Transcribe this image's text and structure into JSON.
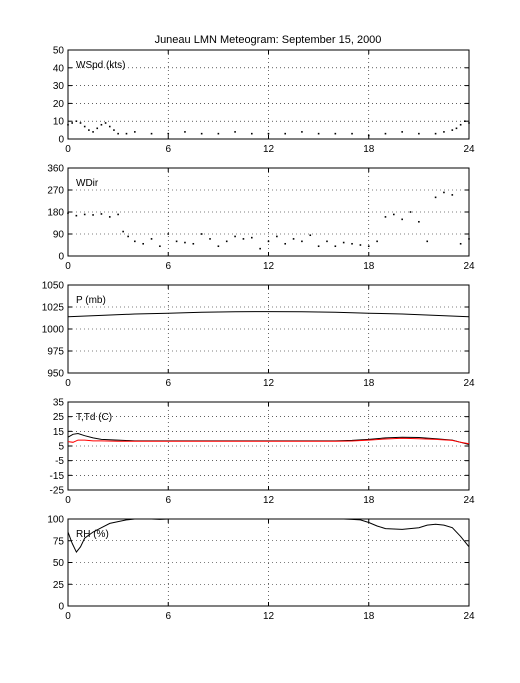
{
  "title": "Juneau LMN Meteogram: September 15, 2000",
  "chart_data": [
    {
      "type": "scatter",
      "label": "WSpd (kts)",
      "xlim": [
        0,
        24
      ],
      "ylim": [
        0,
        50
      ],
      "xticks": [
        0,
        6,
        12,
        18,
        24
      ],
      "yticks": [
        0,
        10,
        20,
        30,
        40,
        50
      ],
      "grid": true,
      "series": [
        {
          "color": "#000000",
          "x": [
            0,
            0.25,
            0.5,
            0.75,
            1,
            1.25,
            1.5,
            1.75,
            2,
            2.25,
            2.5,
            2.75,
            3,
            3.5,
            4,
            5,
            6,
            7,
            8,
            9,
            10,
            11,
            12,
            13,
            14,
            15,
            16,
            17,
            18,
            19,
            20,
            21,
            22,
            22.5,
            23,
            23.25,
            23.5,
            23.75,
            24
          ],
          "y": [
            8,
            9,
            10,
            9,
            7,
            5,
            4,
            6,
            8,
            9,
            7,
            5,
            3,
            3,
            4,
            3,
            3,
            4,
            3,
            3,
            4,
            3,
            3,
            3,
            4,
            3,
            3,
            3,
            2,
            3,
            4,
            3,
            3,
            4,
            5,
            6,
            8,
            10,
            9
          ]
        }
      ]
    },
    {
      "type": "scatter",
      "label": "WDir",
      "xlim": [
        0,
        24
      ],
      "ylim": [
        0,
        360
      ],
      "xticks": [
        0,
        6,
        12,
        18,
        24
      ],
      "yticks": [
        0,
        90,
        180,
        270,
        360
      ],
      "grid": true,
      "series": [
        {
          "color": "#000000",
          "x": [
            0,
            0.5,
            1,
            1.5,
            2,
            2.5,
            3,
            3.3,
            3.6,
            4,
            4.5,
            5,
            5.5,
            6,
            6.5,
            7,
            7.5,
            8,
            8.5,
            9,
            9.5,
            10,
            10.5,
            11,
            11.5,
            12,
            12.5,
            13,
            13.5,
            14,
            14.5,
            15,
            15.5,
            16,
            16.5,
            17,
            17.5,
            18,
            18.5,
            19,
            19.5,
            20,
            20.5,
            21,
            21.5,
            22,
            22.5,
            23,
            23.5,
            24
          ],
          "y": [
            175,
            165,
            170,
            168,
            172,
            160,
            170,
            100,
            80,
            60,
            50,
            70,
            40,
            90,
            60,
            55,
            50,
            90,
            70,
            40,
            60,
            80,
            70,
            75,
            30,
            60,
            80,
            50,
            70,
            60,
            85,
            40,
            60,
            40,
            55,
            50,
            45,
            40,
            60,
            160,
            170,
            150,
            180,
            140,
            60,
            240,
            260,
            250,
            50,
            70
          ]
        }
      ]
    },
    {
      "type": "line",
      "label": "P (mb)",
      "xlim": [
        0,
        24
      ],
      "ylim": [
        950,
        1050
      ],
      "xticks": [
        0,
        6,
        12,
        18,
        24
      ],
      "yticks": [
        950,
        975,
        1000,
        1025,
        1050
      ],
      "grid": true,
      "series": [
        {
          "color": "#000000",
          "x": [
            0,
            2,
            4,
            6,
            8,
            10,
            12,
            14,
            16,
            18,
            20,
            22,
            24
          ],
          "y": [
            1014,
            1015.5,
            1017,
            1018,
            1019,
            1019.5,
            1019.8,
            1019.5,
            1019,
            1018,
            1017,
            1015.5,
            1014
          ]
        }
      ]
    },
    {
      "type": "line",
      "label": "T,Td (C)",
      "xlim": [
        0,
        24
      ],
      "ylim": [
        -25,
        35
      ],
      "xticks": [
        0,
        6,
        12,
        18,
        24
      ],
      "yticks": [
        -25,
        -15,
        -5,
        5,
        15,
        25,
        35
      ],
      "grid": true,
      "series": [
        {
          "color": "#000000",
          "x": [
            0,
            0.3,
            0.6,
            1,
            1.5,
            2,
            3,
            4,
            6,
            8,
            10,
            12,
            14,
            16,
            17,
            18,
            19,
            20,
            21,
            22,
            23,
            23.5,
            24
          ],
          "y": [
            11,
            13,
            13.5,
            12,
            10.5,
            9.5,
            9,
            8.5,
            8.5,
            8.5,
            8.5,
            8.5,
            8.5,
            8.5,
            8.8,
            9.5,
            10.5,
            11,
            10.8,
            10,
            9,
            7.5,
            6
          ]
        },
        {
          "color": "#ff0000",
          "x": [
            0,
            0.3,
            0.6,
            1,
            1.5,
            2,
            3,
            4,
            6,
            8,
            10,
            12,
            14,
            16,
            17,
            18,
            19,
            20,
            21,
            22,
            23,
            23.5,
            24
          ],
          "y": [
            8,
            7.5,
            9,
            9,
            8.5,
            8.5,
            8.3,
            8.3,
            8.2,
            8.2,
            8.2,
            8.2,
            8.2,
            8.2,
            8.4,
            9,
            9.8,
            10.3,
            10,
            9.5,
            8.8,
            7.5,
            6.5
          ]
        }
      ]
    },
    {
      "type": "line",
      "label": "RH (%)",
      "xlim": [
        0,
        24
      ],
      "ylim": [
        0,
        100
      ],
      "xticks": [
        0,
        6,
        12,
        18,
        24
      ],
      "yticks": [
        0,
        25,
        50,
        75,
        100
      ],
      "grid": true,
      "series": [
        {
          "color": "#000000",
          "x": [
            0,
            0.25,
            0.5,
            0.75,
            1,
            1.5,
            2,
            2.5,
            3,
            3.5,
            4,
            5,
            5.5,
            6,
            6.5,
            16.5,
            17,
            17.5,
            18,
            18.5,
            19,
            20,
            21,
            21.5,
            22,
            22.5,
            23,
            23.5,
            24
          ],
          "y": [
            85,
            72,
            62,
            68,
            78,
            85,
            90,
            95,
            97,
            99,
            100,
            100,
            99.5,
            100,
            100,
            100,
            99.5,
            99,
            96,
            92,
            89,
            88,
            90,
            93,
            94,
            93,
            90,
            80,
            68
          ]
        }
      ]
    }
  ]
}
